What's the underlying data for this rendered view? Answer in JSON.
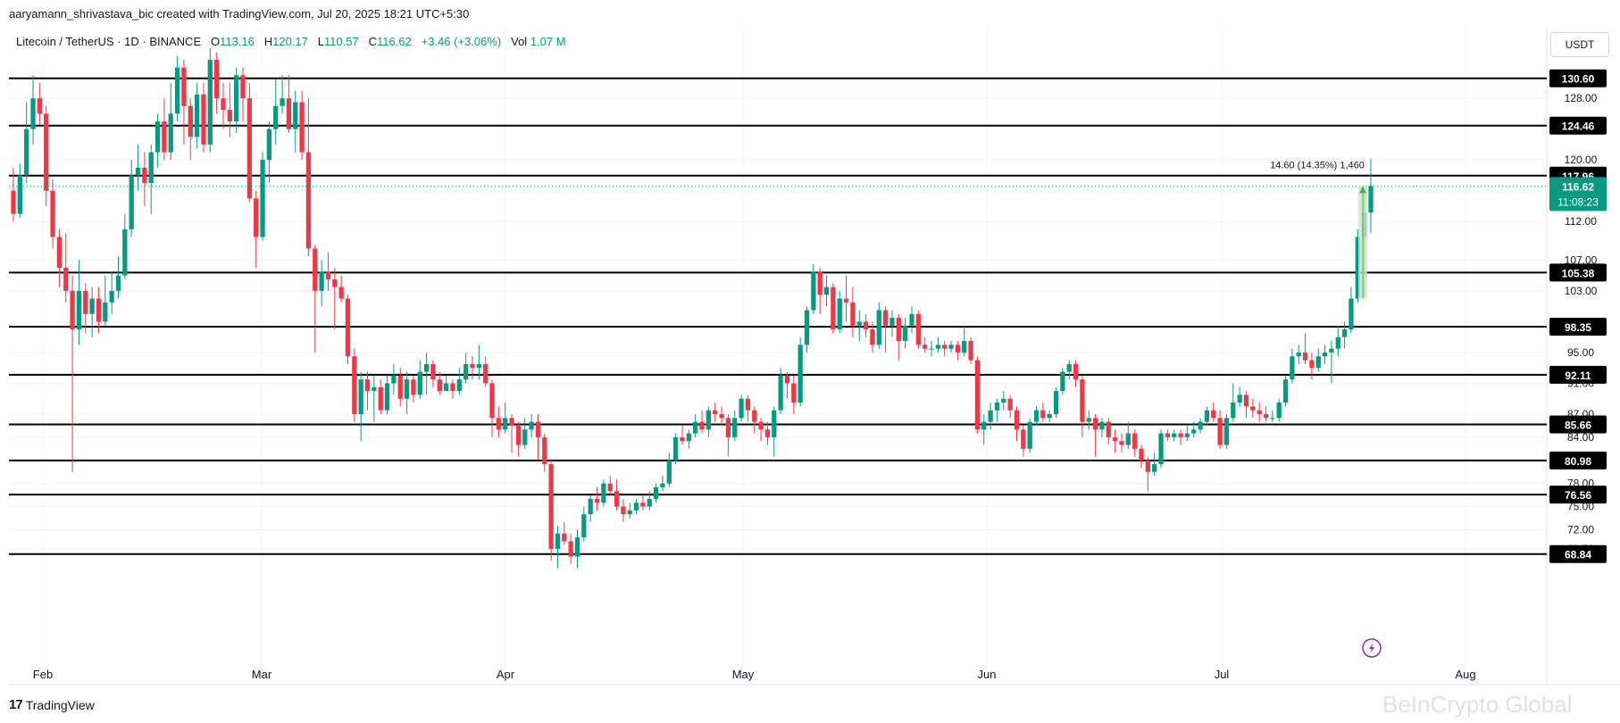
{
  "attribution": "aaryamann_shrivastava_bic created with TradingView.com, Jul 20, 2025 18:21 UTC+5:30",
  "header": {
    "symbol": "Litecoin / TetherUS · 1D · BINANCE",
    "o_label": "O",
    "o": "113.16",
    "h_label": "H",
    "h": "120.17",
    "l_label": "L",
    "l": "110.57",
    "c_label": "C",
    "c": "116.62",
    "change": "+3.46 (+3.06%)",
    "vol_label": "Vol",
    "vol": "1.07 M"
  },
  "currency": "USDT",
  "footer_logo": "TradingView",
  "watermark": "BeInCrypto Global",
  "colors": {
    "up": "#089981",
    "down": "#f23645",
    "level_line": "#000000",
    "grid": "#f0f3fa",
    "measure": "#c8e6c9"
  },
  "chart_data": {
    "type": "candlestick",
    "x_ticks": [
      "Feb",
      "Mar",
      "Apr",
      "May",
      "Jun",
      "Jul",
      "Aug"
    ],
    "y_ticks": [
      "128.00",
      "120.00",
      "112.00",
      "107.00",
      "103.00",
      "99.00",
      "95.00",
      "91.00",
      "87.00",
      "84.00",
      "78.00",
      "75.00",
      "72.00",
      "69.50"
    ],
    "horizontal_levels": [
      "130.60",
      "124.46",
      "117.96",
      "105.38",
      "98.35",
      "92.11",
      "85.66",
      "80.98",
      "76.56",
      "68.84"
    ],
    "current_price": "116.62",
    "countdown": "11:08:23",
    "measure_label": "14.60 (14.35%) 1,460",
    "measure_from": 102.0,
    "measure_to": 116.62,
    "candles": [
      [
        116.0,
        113.0,
        119.0,
        112.0
      ],
      [
        113.0,
        118.0,
        119.5,
        112.5
      ],
      [
        118.0,
        124.0,
        127.5,
        117.0
      ],
      [
        124.0,
        128.0,
        131.0,
        122.0
      ],
      [
        128.0,
        126.0,
        130.0,
        124.5
      ],
      [
        126.0,
        116.0,
        127.0,
        114.0
      ],
      [
        116.0,
        110.0,
        117.5,
        108.5
      ],
      [
        110.0,
        106.0,
        111.0,
        103.5
      ],
      [
        106.0,
        103.0,
        110.5,
        101.5
      ],
      [
        103.0,
        98.0,
        105.0,
        79.5
      ],
      [
        98.0,
        103.0,
        107.0,
        96.0
      ],
      [
        103.0,
        100.0,
        104.0,
        97.5
      ],
      [
        100.0,
        102.0,
        103.5,
        97.0
      ],
      [
        102.0,
        99.0,
        103.5,
        97.5
      ],
      [
        99.0,
        101.5,
        105.0,
        98.5
      ],
      [
        101.5,
        103.0,
        105.5,
        100.0
      ],
      [
        103.0,
        105.0,
        107.5,
        102.0
      ],
      [
        105.0,
        111.0,
        113.0,
        104.5
      ],
      [
        111.0,
        118.0,
        120.0,
        110.0
      ],
      [
        118.0,
        119.0,
        122.0,
        116.0
      ],
      [
        119.0,
        117.0,
        121.0,
        114.0
      ],
      [
        117.0,
        121.0,
        122.0,
        113.0
      ],
      [
        121.0,
        125.0,
        126.0,
        119.0
      ],
      [
        125.0,
        121.0,
        128.0,
        120.0
      ],
      [
        121.0,
        126.0,
        130.0,
        120.0
      ],
      [
        126.0,
        132.0,
        133.5,
        125.0
      ],
      [
        132.0,
        127.0,
        133.0,
        122.0
      ],
      [
        127.0,
        123.0,
        128.0,
        120.0
      ],
      [
        123.0,
        128.5,
        130.0,
        121.5
      ],
      [
        128.5,
        122.0,
        130.0,
        121.0
      ],
      [
        122.0,
        133.0,
        134.5,
        121.0
      ],
      [
        133.0,
        128.0,
        134.0,
        126.0
      ],
      [
        128.0,
        126.5,
        130.0,
        124.0
      ],
      [
        126.5,
        125.0,
        130.0,
        123.0
      ],
      [
        125.0,
        131.0,
        132.0,
        123.5
      ],
      [
        131.0,
        128.0,
        132.0,
        125.0
      ],
      [
        128.0,
        115.0,
        130.0,
        114.5
      ],
      [
        115.0,
        110.0,
        116.0,
        106.0
      ],
      [
        110.0,
        120.0,
        121.0,
        109.5
      ],
      [
        120.0,
        124.0,
        125.0,
        117.0
      ],
      [
        124.0,
        127.0,
        130.5,
        122.0
      ],
      [
        127.0,
        128.0,
        131.0,
        126.0
      ],
      [
        128.0,
        124.0,
        131.0,
        123.5
      ],
      [
        124.0,
        127.5,
        129.0,
        121.0
      ],
      [
        127.5,
        121.0,
        129.0,
        120.0
      ],
      [
        121.0,
        108.5,
        128.0,
        107.5
      ],
      [
        108.5,
        103.0,
        109.0,
        95.0
      ],
      [
        103.0,
        105.5,
        107.0,
        101.0
      ],
      [
        105.5,
        104.5,
        108.0,
        103.0
      ],
      [
        104.5,
        103.5,
        106.0,
        98.0
      ],
      [
        103.5,
        102.0,
        105.0,
        101.5
      ],
      [
        102.0,
        94.5,
        102.5,
        93.5
      ],
      [
        94.5,
        87.0,
        95.5,
        86.0
      ],
      [
        87.0,
        91.5,
        92.5,
        83.5
      ],
      [
        91.5,
        90.0,
        92.5,
        87.5
      ],
      [
        90.0,
        90.5,
        92.0,
        86.0
      ],
      [
        90.5,
        87.5,
        91.5,
        87.0
      ],
      [
        87.5,
        91.0,
        92.0,
        87.0
      ],
      [
        91.0,
        92.0,
        93.5,
        89.5
      ],
      [
        92.0,
        89.0,
        93.0,
        88.0
      ],
      [
        89.0,
        91.5,
        92.5,
        87.0
      ],
      [
        91.5,
        89.5,
        92.0,
        88.5
      ],
      [
        89.5,
        92.5,
        94.0,
        89.0
      ],
      [
        92.5,
        93.5,
        95.0,
        89.5
      ],
      [
        93.5,
        91.5,
        94.0,
        90.5
      ],
      [
        91.5,
        90.0,
        92.5,
        89.5
      ],
      [
        90.0,
        91.0,
        92.0,
        90.0
      ],
      [
        91.0,
        90.0,
        91.5,
        89.0
      ],
      [
        90.0,
        91.5,
        93.0,
        89.5
      ],
      [
        91.5,
        93.5,
        95.0,
        91.0
      ],
      [
        93.5,
        93.0,
        94.5,
        91.5
      ],
      [
        93.0,
        93.5,
        96.0,
        91.5
      ],
      [
        93.5,
        91.0,
        94.5,
        90.5
      ],
      [
        91.0,
        86.5,
        91.5,
        84.0
      ],
      [
        86.5,
        85.0,
        88.0,
        84.0
      ],
      [
        85.0,
        86.5,
        88.5,
        84.5
      ],
      [
        86.5,
        85.5,
        87.0,
        82.0
      ],
      [
        85.5,
        83.0,
        86.0,
        81.5
      ],
      [
        83.0,
        85.0,
        86.5,
        82.5
      ],
      [
        85.0,
        86.0,
        87.0,
        84.0
      ],
      [
        86.0,
        84.0,
        87.0,
        81.0
      ],
      [
        84.0,
        80.5,
        84.5,
        79.5
      ],
      [
        80.5,
        69.5,
        81.0,
        68.0
      ],
      [
        69.5,
        71.5,
        72.5,
        67.0
      ],
      [
        71.5,
        70.5,
        73.0,
        70.0
      ],
      [
        70.5,
        68.5,
        71.5,
        67.5
      ],
      [
        68.5,
        71.0,
        72.0,
        67.0
      ],
      [
        71.0,
        74.0,
        75.0,
        70.5
      ],
      [
        74.0,
        76.0,
        76.5,
        73.0
      ],
      [
        76.0,
        75.5,
        77.5,
        74.5
      ],
      [
        75.5,
        78.0,
        78.5,
        75.0
      ],
      [
        78.0,
        77.0,
        79.0,
        76.5
      ],
      [
        77.0,
        75.0,
        78.5,
        74.5
      ],
      [
        75.0,
        74.0,
        76.0,
        73.0
      ],
      [
        74.0,
        74.5,
        75.5,
        73.5
      ],
      [
        74.5,
        75.5,
        76.0,
        74.0
      ],
      [
        75.5,
        75.0,
        76.5,
        74.5
      ],
      [
        75.0,
        76.0,
        77.0,
        74.5
      ],
      [
        76.0,
        77.5,
        78.0,
        75.5
      ],
      [
        77.5,
        78.0,
        79.0,
        77.0
      ],
      [
        78.0,
        81.0,
        82.0,
        77.5
      ],
      [
        81.0,
        84.0,
        84.5,
        80.5
      ],
      [
        84.0,
        83.5,
        85.5,
        83.0
      ],
      [
        83.5,
        84.5,
        85.0,
        82.5
      ],
      [
        84.5,
        86.0,
        87.0,
        84.0
      ],
      [
        86.0,
        85.0,
        87.5,
        84.5
      ],
      [
        85.0,
        87.5,
        88.0,
        84.0
      ],
      [
        87.5,
        87.0,
        88.5,
        86.0
      ],
      [
        87.0,
        86.5,
        88.0,
        85.5
      ],
      [
        86.5,
        84.0,
        87.0,
        81.5
      ],
      [
        84.0,
        86.5,
        87.5,
        83.5
      ],
      [
        86.5,
        89.0,
        89.5,
        86.0
      ],
      [
        89.0,
        87.5,
        89.5,
        86.0
      ],
      [
        87.5,
        86.0,
        88.0,
        84.5
      ],
      [
        86.0,
        85.0,
        86.5,
        83.5
      ],
      [
        85.0,
        84.0,
        86.0,
        83.0
      ],
      [
        84.0,
        87.5,
        88.0,
        81.5
      ],
      [
        87.5,
        92.0,
        93.0,
        87.0
      ],
      [
        92.0,
        91.0,
        92.5,
        89.0
      ],
      [
        91.0,
        88.5,
        92.0,
        87.0
      ],
      [
        88.5,
        96.0,
        97.0,
        88.0
      ],
      [
        96.0,
        100.5,
        101.0,
        95.0
      ],
      [
        100.5,
        105.5,
        106.5,
        100.0
      ],
      [
        105.5,
        102.5,
        106.0,
        100.0
      ],
      [
        102.5,
        103.5,
        105.0,
        101.0
      ],
      [
        103.5,
        98.0,
        104.0,
        97.5
      ],
      [
        98.0,
        102.0,
        103.0,
        97.5
      ],
      [
        102.0,
        101.5,
        105.0,
        99.0
      ],
      [
        101.5,
        98.5,
        103.5,
        97.0
      ],
      [
        98.5,
        99.0,
        100.5,
        96.5
      ],
      [
        99.0,
        98.0,
        100.0,
        97.0
      ],
      [
        98.0,
        96.0,
        99.0,
        95.0
      ],
      [
        96.0,
        100.5,
        101.5,
        95.5
      ],
      [
        100.5,
        98.5,
        101.0,
        95.0
      ],
      [
        98.5,
        99.5,
        100.5,
        97.0
      ],
      [
        99.5,
        96.5,
        100.0,
        94.0
      ],
      [
        96.5,
        98.5,
        99.5,
        95.5
      ],
      [
        98.5,
        100.0,
        101.0,
        97.5
      ],
      [
        100.0,
        96.0,
        100.5,
        95.5
      ],
      [
        96.0,
        95.5,
        97.0,
        95.0
      ],
      [
        95.5,
        95.5,
        96.5,
        94.5
      ],
      [
        95.5,
        96.0,
        97.0,
        95.0
      ],
      [
        96.0,
        95.5,
        96.5,
        94.5
      ],
      [
        95.5,
        96.0,
        96.5,
        95.0
      ],
      [
        96.0,
        95.0,
        96.5,
        94.0
      ],
      [
        95.0,
        96.5,
        98.5,
        94.5
      ],
      [
        96.5,
        94.0,
        97.0,
        93.5
      ],
      [
        94.0,
        85.0,
        94.5,
        84.5
      ],
      [
        85.0,
        86.0,
        87.0,
        83.0
      ],
      [
        86.0,
        87.5,
        88.5,
        85.0
      ],
      [
        87.5,
        88.5,
        89.0,
        86.0
      ],
      [
        88.5,
        89.0,
        90.0,
        87.5
      ],
      [
        89.0,
        87.5,
        89.5,
        86.5
      ],
      [
        87.5,
        85.0,
        88.0,
        83.5
      ],
      [
        85.0,
        82.5,
        85.5,
        81.5
      ],
      [
        82.5,
        86.0,
        86.5,
        82.0
      ],
      [
        86.0,
        87.5,
        88.0,
        85.5
      ],
      [
        87.5,
        86.5,
        88.5,
        86.0
      ],
      [
        86.5,
        87.0,
        87.5,
        86.0
      ],
      [
        87.0,
        90.0,
        90.5,
        86.5
      ],
      [
        90.0,
        92.5,
        93.0,
        89.5
      ],
      [
        92.5,
        93.5,
        94.0,
        91.5
      ],
      [
        93.5,
        91.5,
        94.0,
        90.5
      ],
      [
        91.5,
        86.0,
        92.0,
        84.0
      ],
      [
        86.0,
        86.5,
        87.5,
        85.0
      ],
      [
        86.5,
        85.0,
        87.0,
        81.5
      ],
      [
        85.0,
        86.0,
        86.5,
        84.0
      ],
      [
        86.0,
        84.0,
        86.5,
        83.0
      ],
      [
        84.0,
        83.5,
        85.0,
        82.0
      ],
      [
        83.5,
        83.0,
        84.5,
        82.0
      ],
      [
        83.0,
        84.5,
        86.0,
        82.5
      ],
      [
        84.5,
        82.5,
        85.0,
        81.5
      ],
      [
        82.5,
        81.0,
        83.0,
        80.0
      ],
      [
        81.0,
        79.5,
        81.5,
        77.0
      ],
      [
        79.5,
        80.5,
        82.0,
        79.0
      ],
      [
        80.5,
        84.5,
        85.0,
        80.0
      ],
      [
        84.5,
        84.0,
        85.0,
        83.5
      ],
      [
        84.0,
        84.5,
        85.0,
        83.5
      ],
      [
        84.5,
        84.0,
        85.0,
        83.0
      ],
      [
        84.0,
        84.5,
        85.5,
        83.5
      ],
      [
        84.5,
        85.0,
        86.0,
        84.0
      ],
      [
        85.0,
        86.0,
        86.5,
        84.5
      ],
      [
        86.0,
        87.5,
        88.0,
        85.5
      ],
      [
        87.5,
        86.5,
        88.5,
        86.0
      ],
      [
        86.5,
        83.0,
        87.5,
        82.5
      ],
      [
        83.0,
        86.5,
        87.0,
        82.5
      ],
      [
        86.5,
        88.5,
        91.0,
        86.0
      ],
      [
        88.5,
        89.5,
        90.5,
        88.0
      ],
      [
        89.5,
        88.0,
        90.0,
        86.5
      ],
      [
        88.0,
        87.5,
        89.0,
        86.5
      ],
      [
        87.5,
        87.0,
        88.5,
        86.0
      ],
      [
        87.0,
        86.5,
        88.0,
        86.0
      ],
      [
        86.5,
        86.5,
        87.5,
        86.0
      ],
      [
        86.5,
        88.5,
        89.0,
        86.0
      ],
      [
        88.5,
        91.5,
        92.0,
        88.0
      ],
      [
        91.5,
        94.5,
        95.5,
        91.0
      ],
      [
        94.5,
        95.0,
        96.0,
        93.5
      ],
      [
        95.0,
        94.0,
        97.5,
        93.5
      ],
      [
        94.0,
        93.0,
        95.0,
        91.5
      ],
      [
        93.0,
        94.5,
        95.5,
        92.5
      ],
      [
        94.5,
        95.0,
        96.0,
        93.5
      ],
      [
        95.0,
        95.5,
        96.5,
        91.0
      ],
      [
        95.5,
        97.0,
        98.5,
        94.5
      ],
      [
        97.0,
        98.0,
        99.0,
        95.5
      ],
      [
        98.0,
        102.0,
        103.5,
        97.5
      ],
      [
        102.0,
        110.0,
        111.0,
        101.5
      ],
      [
        110.0,
        113.16,
        116.0,
        102.0
      ],
      [
        113.16,
        116.62,
        120.17,
        110.57
      ]
    ]
  }
}
